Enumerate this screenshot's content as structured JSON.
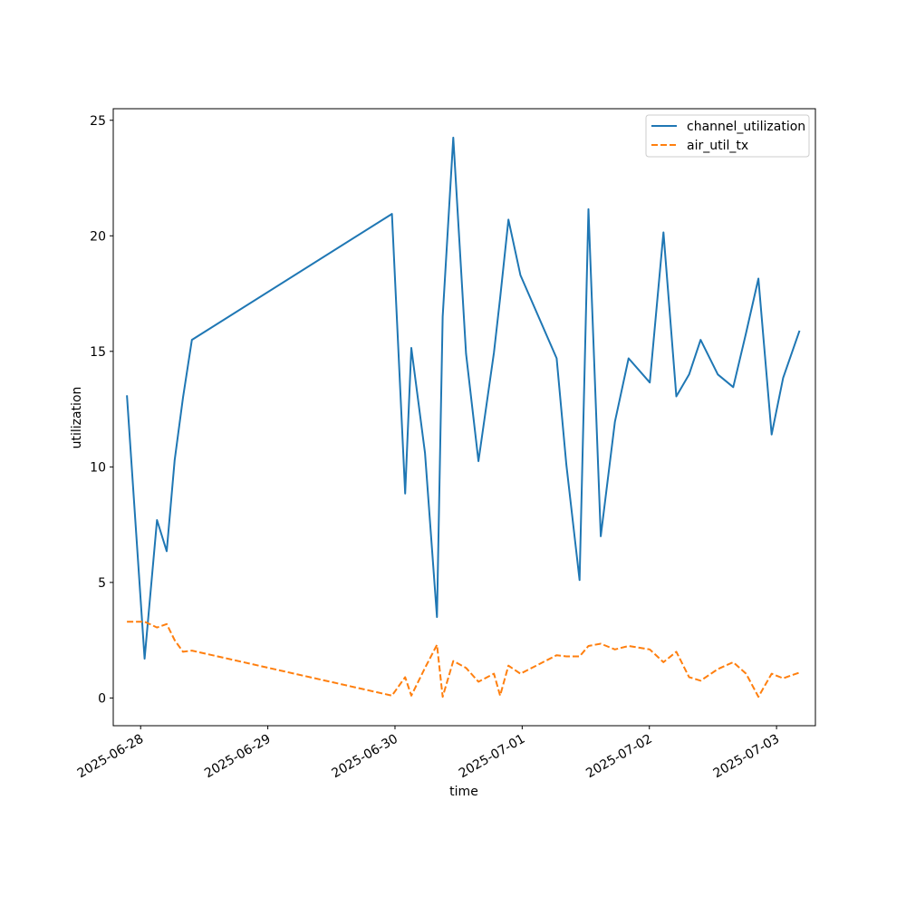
{
  "chart_data": {
    "type": "line",
    "title": "",
    "xlabel": "time",
    "ylabel": "utilization",
    "x_tick_labels": [
      "2025-06-28",
      "2025-06-29",
      "2025-06-30",
      "2025-07-01",
      "2025-07-02",
      "2025-07-03"
    ],
    "y_ticks": [
      0,
      5,
      10,
      15,
      20,
      25
    ],
    "ylim": [
      -1.2,
      25.5
    ],
    "xlim": [
      "2025-06-27 18:50",
      "2025-07-03 07:20"
    ],
    "grid": false,
    "legend_position": "top-right",
    "series": [
      {
        "name": "channel_utilization",
        "color": "#1f77b4",
        "dash": "solid",
        "points": [
          [
            "2025-06-27 21:25",
            13.1
          ],
          [
            "2025-06-28 00:45",
            1.7
          ],
          [
            "2025-06-28 03:05",
            7.7
          ],
          [
            "2025-06-28 04:55",
            6.35
          ],
          [
            "2025-06-28 06:25",
            10.3
          ],
          [
            "2025-06-28 08:00",
            13.0
          ],
          [
            "2025-06-28 09:40",
            15.5
          ],
          [
            "2025-06-29 23:25",
            20.95
          ],
          [
            "2025-06-30 01:55",
            8.85
          ],
          [
            "2025-06-30 03:05",
            15.15
          ],
          [
            "2025-06-30 05:40",
            10.6
          ],
          [
            "2025-06-30 07:55",
            3.5
          ],
          [
            "2025-06-30 09:00",
            16.5
          ],
          [
            "2025-06-30 11:00",
            24.25
          ],
          [
            "2025-06-30 13:25",
            14.9
          ],
          [
            "2025-06-30 15:45",
            10.25
          ],
          [
            "2025-06-30 18:40",
            14.95
          ],
          [
            "2025-06-30 19:50",
            17.3
          ],
          [
            "2025-06-30 21:25",
            20.7
          ],
          [
            "2025-06-30 23:40",
            18.3
          ],
          [
            "2025-07-01 06:30",
            14.7
          ],
          [
            "2025-07-01 08:20",
            10.1
          ],
          [
            "2025-07-01 10:50",
            5.1
          ],
          [
            "2025-07-01 12:30",
            21.15
          ],
          [
            "2025-07-01 14:50",
            7.0
          ],
          [
            "2025-07-01 17:30",
            11.95
          ],
          [
            "2025-07-01 20:05",
            14.7
          ],
          [
            "2025-07-02 00:05",
            13.65
          ],
          [
            "2025-07-02 02:40",
            20.15
          ],
          [
            "2025-07-02 05:05",
            13.05
          ],
          [
            "2025-07-02 07:30",
            14.0
          ],
          [
            "2025-07-02 09:40",
            15.5
          ],
          [
            "2025-07-02 12:55",
            14.0
          ],
          [
            "2025-07-02 15:50",
            13.45
          ],
          [
            "2025-07-02 18:15",
            15.8
          ],
          [
            "2025-07-02 20:35",
            18.15
          ],
          [
            "2025-07-02 23:05",
            11.4
          ],
          [
            "2025-07-03 01:15",
            13.85
          ],
          [
            "2025-07-03 04:20",
            15.9
          ]
        ]
      },
      {
        "name": "air_util_tx",
        "color": "#ff7f0e",
        "dash": "dashed",
        "points": [
          [
            "2025-06-27 21:25",
            3.3
          ],
          [
            "2025-06-28 00:45",
            3.3
          ],
          [
            "2025-06-28 03:05",
            3.05
          ],
          [
            "2025-06-28 04:55",
            3.2
          ],
          [
            "2025-06-28 06:25",
            2.5
          ],
          [
            "2025-06-28 08:00",
            2.0
          ],
          [
            "2025-06-28 09:40",
            2.05
          ],
          [
            "2025-06-29 23:25",
            0.1
          ],
          [
            "2025-06-30 01:55",
            0.9
          ],
          [
            "2025-06-30 03:05",
            0.1
          ],
          [
            "2025-06-30 05:40",
            1.3
          ],
          [
            "2025-06-30 07:55",
            2.3
          ],
          [
            "2025-06-30 09:00",
            0.05
          ],
          [
            "2025-06-30 11:00",
            1.6
          ],
          [
            "2025-06-30 13:25",
            1.3
          ],
          [
            "2025-06-30 15:45",
            0.7
          ],
          [
            "2025-06-30 18:40",
            1.05
          ],
          [
            "2025-06-30 19:50",
            0.1
          ],
          [
            "2025-06-30 21:25",
            1.4
          ],
          [
            "2025-06-30 23:40",
            1.05
          ],
          [
            "2025-07-01 06:30",
            1.85
          ],
          [
            "2025-07-01 08:20",
            1.8
          ],
          [
            "2025-07-01 10:50",
            1.8
          ],
          [
            "2025-07-01 12:30",
            2.25
          ],
          [
            "2025-07-01 14:50",
            2.35
          ],
          [
            "2025-07-01 17:30",
            2.1
          ],
          [
            "2025-07-01 20:05",
            2.25
          ],
          [
            "2025-07-02 00:05",
            2.1
          ],
          [
            "2025-07-02 02:40",
            1.55
          ],
          [
            "2025-07-02 05:05",
            2.0
          ],
          [
            "2025-07-02 07:30",
            0.9
          ],
          [
            "2025-07-02 09:40",
            0.75
          ],
          [
            "2025-07-02 12:55",
            1.25
          ],
          [
            "2025-07-02 15:50",
            1.55
          ],
          [
            "2025-07-02 18:15",
            1.05
          ],
          [
            "2025-07-02 20:35",
            0.05
          ],
          [
            "2025-07-02 23:05",
            1.05
          ],
          [
            "2025-07-03 01:15",
            0.85
          ],
          [
            "2025-07-03 04:20",
            1.1
          ]
        ]
      }
    ]
  }
}
